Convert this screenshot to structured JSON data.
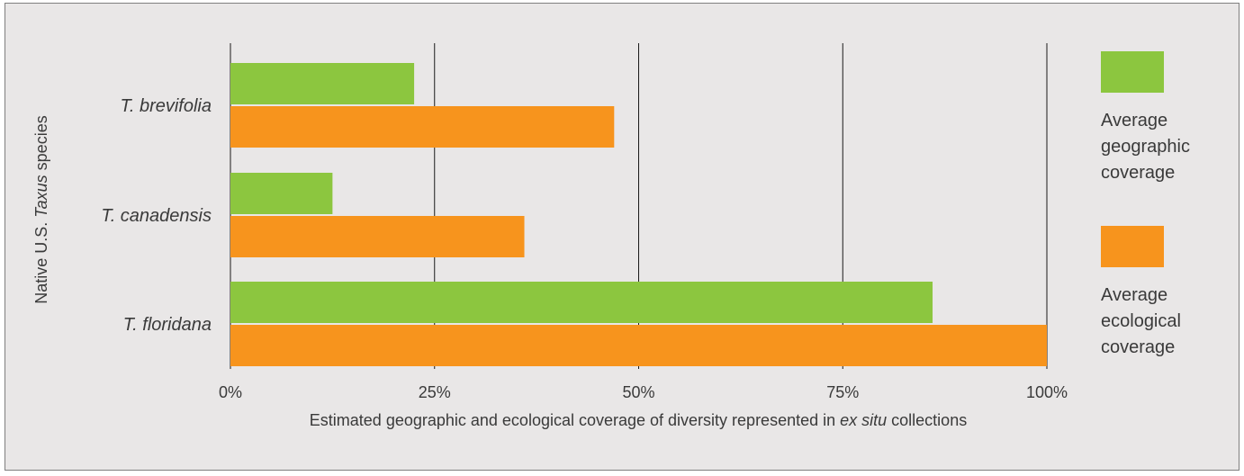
{
  "chart_data": {
    "type": "bar",
    "orientation": "horizontal",
    "categories": [
      "T. brevifolia",
      "T. canadensis",
      "T. floridana"
    ],
    "series": [
      {
        "name": "Average geographic coverage",
        "color": "#8cc63f",
        "values": [
          22.5,
          12.5,
          86
        ]
      },
      {
        "name": "Average ecological coverage",
        "color": "#f7941d",
        "values": [
          47,
          36,
          100
        ]
      }
    ],
    "xlim": [
      0,
      100
    ],
    "x_ticks": [
      0,
      25,
      50,
      75,
      100
    ],
    "x_tick_labels": [
      "0%",
      "25%",
      "50%",
      "75%",
      "100%"
    ],
    "xlabel": {
      "before": "Estimated geographic and ecological coverage of diversity represented in ",
      "italic": "ex situ",
      "after": " collections"
    },
    "ylabel": {
      "before": "Native U.S. ",
      "italic": "Taxus",
      "after": " species"
    },
    "legend": {
      "position": "right",
      "items": [
        {
          "lines": [
            "Average",
            "geographic",
            "coverage"
          ],
          "color": "#8cc63f"
        },
        {
          "lines": [
            "Average",
            "ecological",
            "coverage"
          ],
          "color": "#f7941d"
        }
      ]
    },
    "grid": "vertical lines at ticks"
  }
}
